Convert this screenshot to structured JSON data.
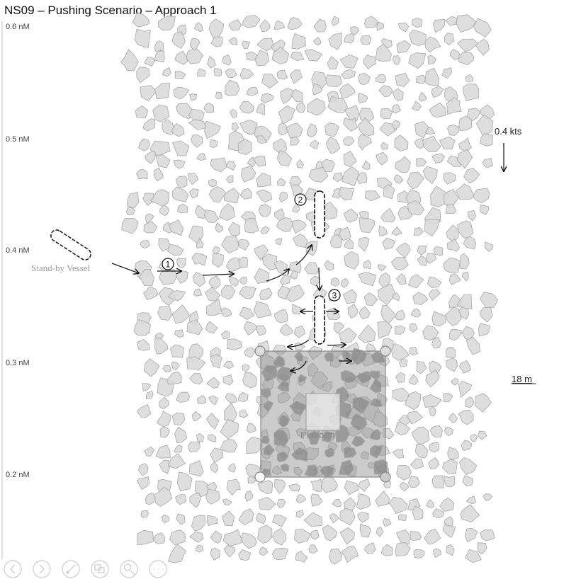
{
  "title": "NS09 – Pushing Scenario – Approach 1",
  "axis": {
    "ticks": [
      {
        "value": 0.6,
        "label": "0.6 nM"
      },
      {
        "value": 0.5,
        "label": "0.5 nM"
      },
      {
        "value": 0.4,
        "label": "0.4 nM"
      },
      {
        "value": 0.3,
        "label": "0.3 nM"
      },
      {
        "value": 0.2,
        "label": "0.2 nM"
      }
    ]
  },
  "vessel": {
    "label": "Stand-by Vessel"
  },
  "current": {
    "label": "0.4 kts",
    "icon": "arrow-down-icon"
  },
  "scale": {
    "label": "18 m"
  },
  "steps": [
    {
      "number": "1"
    },
    {
      "number": "2"
    },
    {
      "number": "3"
    }
  ],
  "platform": {
    "label": "Platform"
  },
  "toolbar": [
    {
      "name": "previous-icon"
    },
    {
      "name": "next-icon"
    },
    {
      "name": "pen-icon"
    },
    {
      "name": "slides-icon"
    },
    {
      "name": "zoom-icon"
    },
    {
      "name": "more-icon"
    }
  ],
  "colors": {
    "ice_fill": "#dadada",
    "ice_stroke": "#a8a8a8",
    "platform_fill": "#8c8c8c",
    "dark_ice": "#8a8a8a"
  }
}
